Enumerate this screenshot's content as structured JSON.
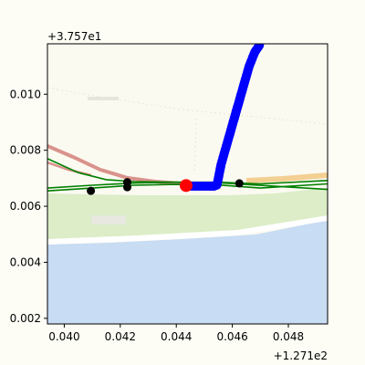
{
  "chart_data": {
    "type": "scatter",
    "x_offset_label": "+1.271e2",
    "y_offset_label": "+3.757e1",
    "xlim": [
      0.0394,
      0.0494
    ],
    "ylim": [
      0.0018,
      0.0118
    ],
    "x_ticks": [
      0.04,
      0.042,
      0.044,
      0.046,
      0.048
    ],
    "x_tick_labels": [
      "0.040",
      "0.042",
      "0.044",
      "0.046",
      "0.048"
    ],
    "y_ticks": [
      0.002,
      0.004,
      0.006,
      0.008,
      0.01
    ],
    "y_tick_labels": [
      "0.002",
      "0.004",
      "0.006",
      "0.008",
      "0.010"
    ],
    "grid": false,
    "map_background": {
      "land_color": "#fbfaf1",
      "water_color": "#c8dcf3",
      "park_color": "#dcedc8",
      "road_color_major": "#f3cf92",
      "rail_color": "#d9938c"
    },
    "series": [
      {
        "color": "#0000ff",
        "marker": "o",
        "x": [
          0.04435,
          0.0446,
          0.0449,
          0.0452,
          0.04535,
          0.04545,
          0.0455,
          0.0456,
          0.0458,
          0.046,
          0.0462,
          0.0464,
          0.0466,
          0.0468,
          0.047
        ],
        "y": [
          0.00672,
          0.00672,
          0.00672,
          0.00672,
          0.00672,
          0.00676,
          0.007,
          0.0075,
          0.0082,
          0.0089,
          0.0096,
          0.0103,
          0.011,
          0.0115,
          0.0118
        ]
      },
      {
        "color": "#000000",
        "marker": "o",
        "x": [
          0.04095,
          0.04225,
          0.04225,
          0.04435,
          0.04625
        ],
        "y": [
          0.00655,
          0.00668,
          0.00686,
          0.00682,
          0.00682
        ]
      },
      {
        "color": "#ff0000",
        "marker": "o",
        "x": [
          0.04435
        ],
        "y": [
          0.00674
        ]
      }
    ],
    "lines": [
      {
        "color": "#008000",
        "x": [
          0.0394,
          0.041,
          0.0425,
          0.044,
          0.0455,
          0.047,
          0.0494
        ],
        "y": [
          0.00655,
          0.00665,
          0.00675,
          0.00678,
          0.00676,
          0.00665,
          0.0068
        ]
      },
      {
        "color": "#008000",
        "x": [
          0.0394,
          0.041,
          0.0425,
          0.044,
          0.0455,
          0.047,
          0.0494
        ],
        "y": [
          0.00665,
          0.00675,
          0.00683,
          0.00686,
          0.00686,
          0.0068,
          0.00692
        ]
      },
      {
        "color": "#008000",
        "x": [
          0.0394,
          0.0405,
          0.0415,
          0.0425,
          0.044,
          0.0455,
          0.0494
        ],
        "y": [
          0.0077,
          0.0072,
          0.00695,
          0.00688,
          0.00686,
          0.00684,
          0.0066
        ]
      }
    ]
  }
}
